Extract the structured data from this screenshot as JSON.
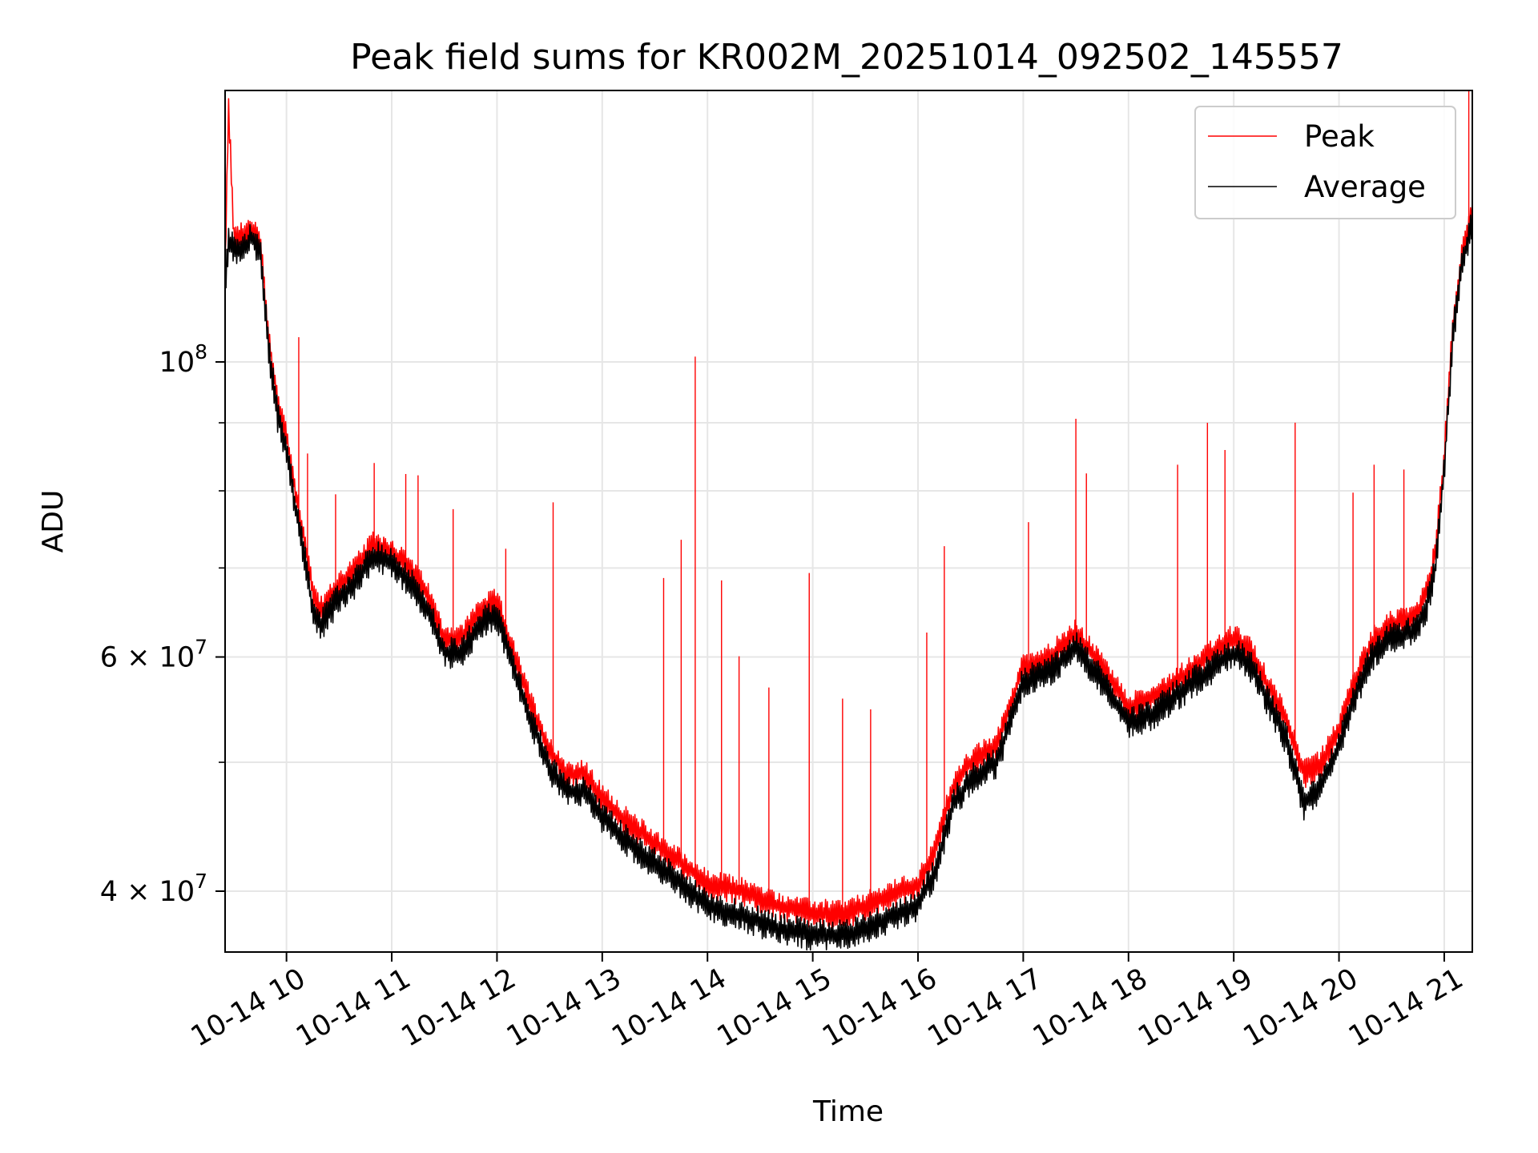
{
  "chart_data": {
    "type": "line",
    "title": "Peak field sums for KR002M_20251014_092502_145557",
    "xlabel": "Time",
    "ylabel": "ADU",
    "yscale": "log",
    "ylim": [
      36000000,
      160000000
    ],
    "xlim": [
      "2025-10-14 09:25",
      "2025-10-14 21:16"
    ],
    "grid": true,
    "legend_position": "upper right",
    "x_ticks": [
      "2025-10-14 10:00",
      "2025-10-14 11:00",
      "2025-10-14 12:00",
      "2025-10-14 13:00",
      "2025-10-14 14:00",
      "2025-10-14 15:00",
      "2025-10-14 16:00",
      "2025-10-14 17:00",
      "2025-10-14 18:00",
      "2025-10-14 19:00",
      "2025-10-14 20:00",
      "2025-10-14 21:00"
    ],
    "x_tick_labels": [
      "10-14 10",
      "10-14 11",
      "10-14 12",
      "10-14 13",
      "10-14 14",
      "10-14 15",
      "10-14 16",
      "10-14 17",
      "10-14 18",
      "10-14 19",
      "10-14 20",
      "10-14 21"
    ],
    "y_ticks": [
      {
        "value": 100000000,
        "mantissa": "",
        "exponent": "8"
      },
      {
        "value": 60000000,
        "mantissa": "6",
        "exponent": "7"
      },
      {
        "value": 40000000,
        "mantissa": "4",
        "exponent": "7"
      }
    ],
    "y_minor_ticks": [
      50000000,
      70000000,
      80000000,
      90000000
    ],
    "series": [
      {
        "name": "Peak",
        "color": "#ff0000",
        "x": [
          "2025-10-14 09:25",
          "2025-10-14 09:27",
          "2025-10-14 09:30",
          "2025-10-14 09:35",
          "2025-10-14 09:40",
          "2025-10-14 09:45",
          "2025-10-14 09:50",
          "2025-10-14 09:55",
          "2025-10-14 10:00",
          "2025-10-14 10:05",
          "2025-10-14 10:08",
          "2025-10-14 10:10",
          "2025-10-14 10:15",
          "2025-10-14 10:20",
          "2025-10-14 10:30",
          "2025-10-14 10:40",
          "2025-10-14 10:50",
          "2025-10-14 11:00",
          "2025-10-14 11:10",
          "2025-10-14 11:20",
          "2025-10-14 11:30",
          "2025-10-14 11:40",
          "2025-10-14 11:50",
          "2025-10-14 12:00",
          "2025-10-14 12:10",
          "2025-10-14 12:20",
          "2025-10-14 12:30",
          "2025-10-14 12:40",
          "2025-10-14 12:50",
          "2025-10-14 13:00",
          "2025-10-14 13:15",
          "2025-10-14 13:30",
          "2025-10-14 13:45",
          "2025-10-14 14:00",
          "2025-10-14 14:20",
          "2025-10-14 14:40",
          "2025-10-14 15:00",
          "2025-10-14 15:20",
          "2025-10-14 15:40",
          "2025-10-14 16:00",
          "2025-10-14 16:10",
          "2025-10-14 16:20",
          "2025-10-14 16:30",
          "2025-10-14 16:45",
          "2025-10-14 17:00",
          "2025-10-14 17:15",
          "2025-10-14 17:30",
          "2025-10-14 17:45",
          "2025-10-14 18:00",
          "2025-10-14 18:15",
          "2025-10-14 18:30",
          "2025-10-14 18:45",
          "2025-10-14 19:00",
          "2025-10-14 19:10",
          "2025-10-14 19:20",
          "2025-10-14 19:30",
          "2025-10-14 19:40",
          "2025-10-14 19:50",
          "2025-10-14 20:00",
          "2025-10-14 20:10",
          "2025-10-14 20:20",
          "2025-10-14 20:30",
          "2025-10-14 20:40",
          "2025-10-14 20:45",
          "2025-10-14 20:50",
          "2025-10-14 20:55",
          "2025-10-14 21:00",
          "2025-10-14 21:05",
          "2025-10-14 21:10",
          "2025-10-14 21:16"
        ],
        "y": [
          118000000,
          155000000,
          125000000,
          124000000,
          126000000,
          123000000,
          104000000,
          93000000,
          88000000,
          80000000,
          76000000,
          74000000,
          67000000,
          65000000,
          68000000,
          70000000,
          73000000,
          72000000,
          70000000,
          67000000,
          62000000,
          62000000,
          65000000,
          66000000,
          60000000,
          55000000,
          51000000,
          49000000,
          49000000,
          47000000,
          45000000,
          43500000,
          42000000,
          40500000,
          40000000,
          39000000,
          38500000,
          38500000,
          39500000,
          40500000,
          43000000,
          48000000,
          50000000,
          51500000,
          59000000,
          60000000,
          62500000,
          59000000,
          55000000,
          56000000,
          58000000,
          60000000,
          62000000,
          60500000,
          57000000,
          54000000,
          49000000,
          50000000,
          53000000,
          58000000,
          62000000,
          63500000,
          64000000,
          65000000,
          67000000,
          72000000,
          85000000,
          107000000,
          120000000,
          130000000
        ]
      },
      {
        "name": "Average",
        "color": "#000000",
        "x": [
          "2025-10-14 09:25",
          "2025-10-14 09:27",
          "2025-10-14 09:30",
          "2025-10-14 09:35",
          "2025-10-14 09:40",
          "2025-10-14 09:45",
          "2025-10-14 09:50",
          "2025-10-14 09:55",
          "2025-10-14 10:00",
          "2025-10-14 10:05",
          "2025-10-14 10:08",
          "2025-10-14 10:10",
          "2025-10-14 10:15",
          "2025-10-14 10:20",
          "2025-10-14 10:30",
          "2025-10-14 10:40",
          "2025-10-14 10:50",
          "2025-10-14 11:00",
          "2025-10-14 11:10",
          "2025-10-14 11:20",
          "2025-10-14 11:30",
          "2025-10-14 11:40",
          "2025-10-14 11:50",
          "2025-10-14 12:00",
          "2025-10-14 12:10",
          "2025-10-14 12:20",
          "2025-10-14 12:30",
          "2025-10-14 12:40",
          "2025-10-14 12:50",
          "2025-10-14 13:00",
          "2025-10-14 13:15",
          "2025-10-14 13:30",
          "2025-10-14 13:45",
          "2025-10-14 14:00",
          "2025-10-14 14:20",
          "2025-10-14 14:40",
          "2025-10-14 15:00",
          "2025-10-14 15:20",
          "2025-10-14 15:40",
          "2025-10-14 16:00",
          "2025-10-14 16:10",
          "2025-10-14 16:20",
          "2025-10-14 16:30",
          "2025-10-14 16:45",
          "2025-10-14 17:00",
          "2025-10-14 17:15",
          "2025-10-14 17:30",
          "2025-10-14 17:45",
          "2025-10-14 18:00",
          "2025-10-14 18:15",
          "2025-10-14 18:30",
          "2025-10-14 18:45",
          "2025-10-14 19:00",
          "2025-10-14 19:10",
          "2025-10-14 19:20",
          "2025-10-14 19:30",
          "2025-10-14 19:40",
          "2025-10-14 19:50",
          "2025-10-14 20:00",
          "2025-10-14 20:10",
          "2025-10-14 20:20",
          "2025-10-14 20:30",
          "2025-10-14 20:40",
          "2025-10-14 20:45",
          "2025-10-14 20:50",
          "2025-10-14 20:55",
          "2025-10-14 21:00",
          "2025-10-14 21:05",
          "2025-10-14 21:10",
          "2025-10-14 21:16"
        ],
        "y": [
          115000000,
          123000000,
          122000000,
          121000000,
          124000000,
          121000000,
          102000000,
          91000000,
          86000000,
          78000000,
          74000000,
          72000000,
          65000000,
          63500000,
          66500000,
          68500000,
          71500000,
          70500000,
          68500000,
          65500000,
          60500000,
          60500000,
          63500000,
          64500000,
          58500000,
          53500000,
          49500000,
          47500000,
          47500000,
          45500000,
          43500000,
          42000000,
          40500000,
          39000000,
          38300000,
          37500000,
          37100000,
          37100000,
          38000000,
          39000000,
          41500000,
          46500000,
          48500000,
          50000000,
          57500000,
          58500000,
          61000000,
          57500000,
          53500000,
          54500000,
          56500000,
          58500000,
          60500000,
          59000000,
          55500000,
          52000000,
          46500000,
          48000000,
          51500000,
          56500000,
          60500000,
          62000000,
          62500000,
          63500000,
          65500000,
          70000000,
          83000000,
          105000000,
          118000000,
          128000000
        ]
      }
    ]
  }
}
